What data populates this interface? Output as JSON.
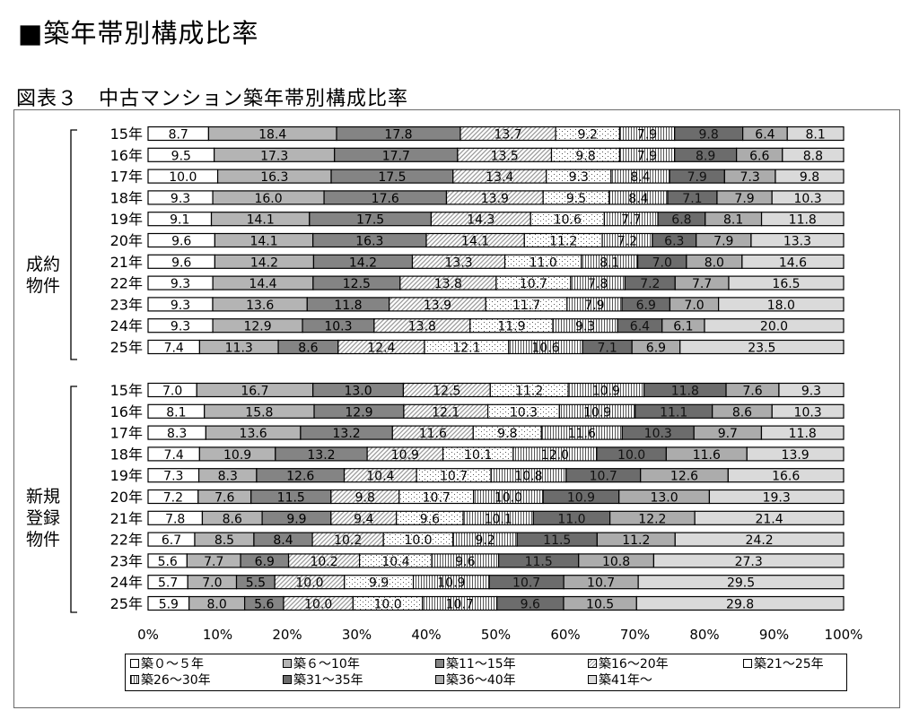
{
  "page_title": "■築年帯別構成比率",
  "figure_title": "図表３　中古マンション築年帯別構成比率",
  "chart_data": {
    "type": "bar",
    "orientation": "horizontal",
    "stacked": "percent",
    "x_ticks": [
      "0%",
      "10%",
      "20%",
      "30%",
      "40%",
      "50%",
      "60%",
      "70%",
      "80%",
      "90%",
      "100%"
    ],
    "xlim": [
      0,
      100
    ],
    "legend_position": "bottom",
    "series_names": [
      "築０～５年",
      "築６～10年",
      "築11～15年",
      "築16～20年",
      "築21～25年",
      "築26～30年",
      "築31～35年",
      "築36～40年",
      "築41年～"
    ],
    "series_colors": [
      "#ffffff",
      "#b4b4b4",
      "#848484",
      "pattern-diagonal",
      "pattern-dots",
      "pattern-vertical",
      "#6c6c6c",
      "#acacac",
      "#dadada"
    ],
    "groups": [
      {
        "label": "成約物件",
        "label_lines": [
          "成約",
          "物件"
        ],
        "rows": [
          {
            "year": "15年",
            "values": [
              "8.7",
              "18.4",
              "17.8",
              "13.7",
              "9.2",
              "7.9",
              "9.8",
              "6.4",
              "8.1"
            ]
          },
          {
            "year": "16年",
            "values": [
              "9.5",
              "17.3",
              "17.7",
              "13.5",
              "9.8",
              "7.9",
              "8.9",
              "6.6",
              "8.8"
            ]
          },
          {
            "year": "17年",
            "values": [
              "10.0",
              "16.3",
              "17.5",
              "13.4",
              "9.3",
              "8.4",
              "7.9",
              "7.3",
              "9.8"
            ]
          },
          {
            "year": "18年",
            "values": [
              "9.3",
              "16.0",
              "17.6",
              "13.9",
              "9.5",
              "8.4",
              "7.1",
              "7.9",
              "10.3"
            ]
          },
          {
            "year": "19年",
            "values": [
              "9.1",
              "14.1",
              "17.5",
              "14.3",
              "10.6",
              "7.7",
              "6.8",
              "8.1",
              "11.8"
            ]
          },
          {
            "year": "20年",
            "values": [
              "9.6",
              "14.1",
              "16.3",
              "14.1",
              "11.2",
              "7.2",
              "6.3",
              "7.9",
              "13.3"
            ]
          },
          {
            "year": "21年",
            "values": [
              "9.6",
              "14.2",
              "14.2",
              "13.3",
              "11.0",
              "8.1",
              "7.0",
              "8.0",
              "14.6"
            ]
          },
          {
            "year": "22年",
            "values": [
              "9.3",
              "14.4",
              "12.5",
              "13.8",
              "10.7",
              "7.8",
              "7.2",
              "7.7",
              "16.5"
            ]
          },
          {
            "year": "23年",
            "values": [
              "9.3",
              "13.6",
              "11.8",
              "13.9",
              "11.7",
              "7.9",
              "6.9",
              "7.0",
              "18.0"
            ]
          },
          {
            "year": "24年",
            "values": [
              "9.3",
              "12.9",
              "10.3",
              "13.8",
              "11.9",
              "9.3",
              "6.4",
              "6.1",
              "20.0"
            ]
          },
          {
            "year": "25年",
            "values": [
              "7.4",
              "11.3",
              "8.6",
              "12.4",
              "12.1",
              "10.6",
              "7.1",
              "6.9",
              "23.5"
            ]
          }
        ]
      },
      {
        "label": "新規登録物件",
        "label_lines": [
          "新規",
          "登録",
          "物件"
        ],
        "rows": [
          {
            "year": "15年",
            "values": [
              "7.0",
              "16.7",
              "13.0",
              "12.5",
              "11.2",
              "10.9",
              "11.8",
              "7.6",
              "9.3"
            ]
          },
          {
            "year": "16年",
            "values": [
              "8.1",
              "15.8",
              "12.9",
              "12.1",
              "10.3",
              "10.9",
              "11.1",
              "8.6",
              "10.3"
            ]
          },
          {
            "year": "17年",
            "values": [
              "8.3",
              "13.6",
              "13.2",
              "11.6",
              "9.8",
              "11.6",
              "10.3",
              "9.7",
              "11.8"
            ]
          },
          {
            "year": "18年",
            "values": [
              "7.4",
              "10.9",
              "13.2",
              "10.9",
              "10.1",
              "12.0",
              "10.0",
              "11.6",
              "13.9"
            ]
          },
          {
            "year": "19年",
            "values": [
              "7.3",
              "8.3",
              "12.6",
              "10.4",
              "10.7",
              "10.8",
              "10.7",
              "12.6",
              "16.6"
            ]
          },
          {
            "year": "20年",
            "values": [
              "7.2",
              "7.6",
              "11.5",
              "9.8",
              "10.7",
              "10.0",
              "10.9",
              "13.0",
              "19.3"
            ]
          },
          {
            "year": "21年",
            "values": [
              "7.8",
              "8.6",
              "9.9",
              "9.4",
              "9.6",
              "10.1",
              "11.0",
              "12.2",
              "21.4"
            ]
          },
          {
            "year": "22年",
            "values": [
              "6.7",
              "8.5",
              "8.4",
              "10.2",
              "10.0",
              "9.2",
              "11.5",
              "11.2",
              "24.2"
            ]
          },
          {
            "year": "23年",
            "values": [
              "5.6",
              "7.7",
              "6.9",
              "10.2",
              "10.4",
              "9.6",
              "11.5",
              "10.8",
              "27.3"
            ]
          },
          {
            "year": "24年",
            "values": [
              "5.7",
              "7.0",
              "5.5",
              "10.0",
              "9.9",
              "10.9",
              "10.7",
              "10.7",
              "29.5"
            ]
          },
          {
            "year": "25年",
            "values": [
              "5.9",
              "8.0",
              "5.6",
              "10.0",
              "10.0",
              "10.7",
              "9.6",
              "10.5",
              "29.8"
            ]
          }
        ]
      }
    ]
  }
}
